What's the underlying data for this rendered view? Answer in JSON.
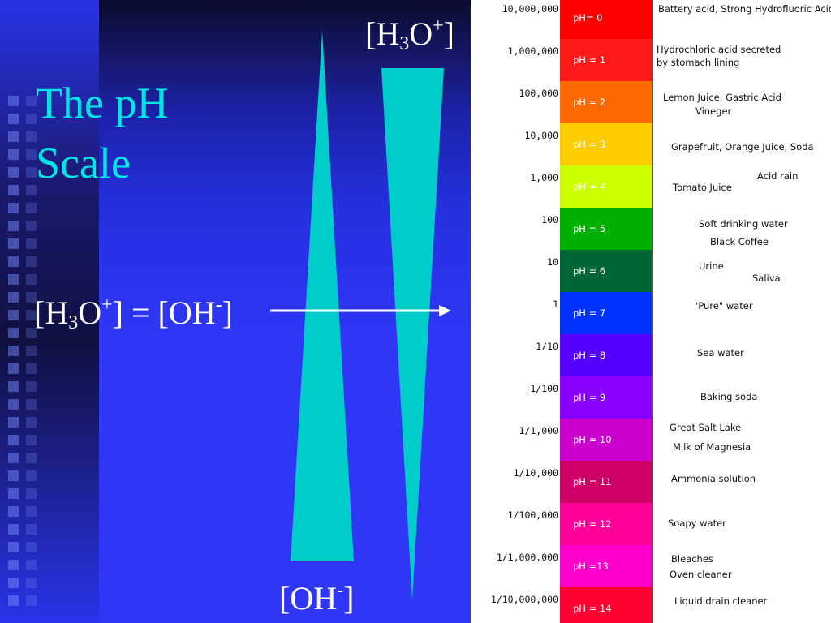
{
  "slide": {
    "title_line1": "The pH",
    "title_line2": "Scale",
    "equation": {
      "left_base": "[H",
      "left_sub": "3",
      "left_mid": "O",
      "left_sup": "+",
      "left_end": "] = [OH",
      "right_sup": "-",
      "right_end": "]"
    },
    "top_label": {
      "base": "[H",
      "sub": "3",
      "mid": "O",
      "sup": "+",
      "end": "]"
    },
    "bottom_label": {
      "base": "[OH",
      "sup": "-",
      "end": "]"
    }
  },
  "colors": {
    "title": "#00e6e6",
    "wedge": "#00cccc",
    "background": "#3036f5"
  },
  "ph_table": [
    {
      "conc": "10,000,000",
      "ph": "pH= 0",
      "color": "#ff0000",
      "examples": [
        "Battery acid, Strong Hydrofluoric Acid"
      ]
    },
    {
      "conc": "1,000,000",
      "ph": "pH = 1",
      "color": "#ff1a1a",
      "examples": [
        "Hydrochloric acid secreted",
        "by stomach lining"
      ]
    },
    {
      "conc": "100,000",
      "ph": "pH = 2",
      "color": "#ff6a00",
      "examples": [
        "Lemon Juice, Gastric Acid",
        "Vineger"
      ]
    },
    {
      "conc": "10,000",
      "ph": "pH = 3",
      "color": "#ffcc00",
      "examples": [
        "Grapefruit, Orange Juice, Soda"
      ]
    },
    {
      "conc": "1,000",
      "ph": "pH = 4",
      "color": "#ccff00",
      "examples": [
        "Acid rain",
        "Tomato Juice"
      ]
    },
    {
      "conc": "100",
      "ph": "pH = 5",
      "color": "#00b000",
      "examples": [
        "Soft drinking water",
        "Black Coffee"
      ]
    },
    {
      "conc": "10",
      "ph": "pH = 6",
      "color": "#006633",
      "examples": [
        "Urine",
        "Saliva"
      ]
    },
    {
      "conc": "1",
      "ph": "pH = 7",
      "color": "#0033ff",
      "examples": [
        "\"Pure\" water"
      ]
    },
    {
      "conc": "1/10",
      "ph": "pH = 8",
      "color": "#5500ff",
      "examples": [
        "Sea water"
      ]
    },
    {
      "conc": "1/100",
      "ph": "pH = 9",
      "color": "#8800ff",
      "examples": [
        "Baking soda"
      ]
    },
    {
      "conc": "1/1,000",
      "ph": "pH = 10",
      "color": "#cc00cc",
      "examples": [
        "Great Salt  Lake",
        "Milk of Magnesia"
      ]
    },
    {
      "conc": "1/10,000",
      "ph": "pH = 11",
      "color": "#cc0066",
      "examples": [
        "Ammonia solution"
      ]
    },
    {
      "conc": "1/100,000",
      "ph": "pH = 12",
      "color": "#ff0099",
      "examples": [
        "Soapy water"
      ]
    },
    {
      "conc": "1/1,000,000",
      "ph": "pH =13",
      "color": "#ff00cc",
      "examples": [
        "Bleaches",
        "Oven cleaner"
      ]
    },
    {
      "conc": "1/10,000,000",
      "ph": "pH = 14",
      "color": "#ff0033",
      "examples": [
        "Liquid drain cleaner"
      ]
    }
  ]
}
